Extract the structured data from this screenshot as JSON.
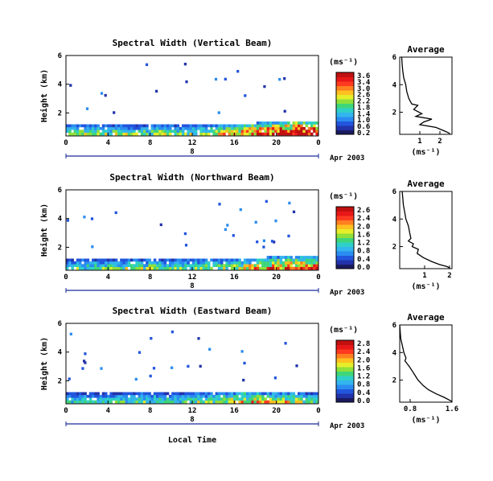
{
  "figure": {
    "xlabel": "Local Time",
    "date_label": "8",
    "date_suffix": "Apr 2003",
    "colorbar_unit": "(ms⁻¹)",
    "average_title": "Average",
    "average_xlabel": "(ms⁻¹)",
    "ylabel": "Height (km)"
  },
  "chart_data": [
    {
      "type": "heatmap",
      "title": "Spectral Width (Vertical Beam)",
      "xlabel": "",
      "ylabel": "Height (km)",
      "x_ticks": [
        "0",
        "4",
        "8",
        "12",
        "16",
        "20",
        "0"
      ],
      "xlim": [
        0,
        24
      ],
      "y_ticks": [
        "6",
        "4",
        "2"
      ],
      "ylim": [
        0.4,
        6
      ],
      "colorbar": {
        "ticks": [
          "3.6",
          "3.4",
          "3.0",
          "2.6",
          "2.2",
          "1.8",
          "1.4",
          "1.0",
          "0.6",
          "0.2"
        ],
        "range": [
          0,
          3.8
        ]
      },
      "boundary_layer": [
        [
          0,
          1.05,
          1.2
        ],
        [
          1,
          1.1,
          1.3
        ],
        [
          2,
          1.05,
          1.3
        ],
        [
          3,
          1.1,
          1.4
        ],
        [
          4,
          1.05,
          1.3
        ],
        [
          5,
          1.0,
          1.3
        ],
        [
          6,
          1.0,
          1.25
        ],
        [
          7,
          0.95,
          1.2
        ],
        [
          8,
          1.0,
          1.3
        ],
        [
          9,
          1.05,
          1.4
        ],
        [
          10,
          1.1,
          1.3
        ],
        [
          11,
          1.0,
          1.2
        ],
        [
          12,
          1.0,
          1.3
        ],
        [
          13,
          1.05,
          1.4
        ],
        [
          14,
          1.1,
          1.5
        ],
        [
          15,
          1.15,
          1.7
        ],
        [
          16,
          1.2,
          1.9
        ],
        [
          17,
          1.25,
          2.2
        ],
        [
          18,
          1.3,
          2.4
        ],
        [
          19,
          1.35,
          2.6
        ],
        [
          20,
          1.4,
          2.8
        ],
        [
          21,
          1.45,
          3.0
        ],
        [
          22,
          1.5,
          3.2
        ],
        [
          23,
          1.5,
          3.0
        ],
        [
          24,
          1.45,
          2.8
        ]
      ],
      "average": {
        "xlim": [
          0,
          2.6
        ],
        "x_ticks": [
          "1",
          "2"
        ],
        "y_ticks": [
          "6",
          "4",
          "2"
        ],
        "ylim": [
          0.4,
          6
        ],
        "profile": [
          [
            0.1,
            6.0
          ],
          [
            0.12,
            5.5
          ],
          [
            0.15,
            5.0
          ],
          [
            0.2,
            4.5
          ],
          [
            0.3,
            4.0
          ],
          [
            0.35,
            3.5
          ],
          [
            0.45,
            3.0
          ],
          [
            0.6,
            2.6
          ],
          [
            0.9,
            2.5
          ],
          [
            0.7,
            2.2
          ],
          [
            1.1,
            1.9
          ],
          [
            0.8,
            1.7
          ],
          [
            1.6,
            1.5
          ],
          [
            1.2,
            1.3
          ],
          [
            1.0,
            1.1
          ],
          [
            1.8,
            0.9
          ],
          [
            2.3,
            0.6
          ],
          [
            2.5,
            0.45
          ]
        ]
      }
    },
    {
      "type": "heatmap",
      "title": "Spectral Width (Northward Beam)",
      "xlabel": "",
      "ylabel": "Height (km)",
      "x_ticks": [
        "0",
        "4",
        "8",
        "12",
        "16",
        "20",
        "0"
      ],
      "xlim": [
        0,
        24
      ],
      "y_ticks": [
        "6",
        "4",
        "2"
      ],
      "ylim": [
        0.4,
        6
      ],
      "colorbar": {
        "ticks": [
          "2.6",
          "2.4",
          "2.0",
          "1.6",
          "1.2",
          "0.8",
          "0.4",
          "0.0"
        ],
        "range": [
          0,
          2.8
        ]
      },
      "boundary_layer": [
        [
          0,
          1.0,
          1.0
        ],
        [
          1,
          1.05,
          1.1
        ],
        [
          2,
          1.0,
          1.1
        ],
        [
          3,
          1.05,
          1.2
        ],
        [
          4,
          1.0,
          1.2
        ],
        [
          5,
          1.0,
          1.25
        ],
        [
          6,
          1.05,
          1.3
        ],
        [
          7,
          1.05,
          1.25
        ],
        [
          8,
          1.1,
          1.3
        ],
        [
          9,
          1.05,
          1.2
        ],
        [
          10,
          1.0,
          1.2
        ],
        [
          11,
          1.0,
          1.15
        ],
        [
          12,
          1.05,
          1.2
        ],
        [
          13,
          1.05,
          1.3
        ],
        [
          14,
          1.1,
          1.3
        ],
        [
          15,
          1.1,
          1.3
        ],
        [
          16,
          1.15,
          1.4
        ],
        [
          17,
          1.2,
          1.6
        ],
        [
          18,
          1.25,
          1.9
        ],
        [
          19,
          1.3,
          2.0
        ],
        [
          20,
          1.3,
          2.1
        ],
        [
          21,
          1.35,
          2.2
        ],
        [
          22,
          1.35,
          2.2
        ],
        [
          23,
          1.3,
          2.1
        ],
        [
          24,
          1.3,
          2.0
        ]
      ],
      "average": {
        "xlim": [
          0,
          2.1
        ],
        "x_ticks": [
          "1",
          "2"
        ],
        "y_ticks": [
          "6",
          "4",
          "2"
        ],
        "ylim": [
          0.4,
          6
        ],
        "profile": [
          [
            0.1,
            6.0
          ],
          [
            0.15,
            5.0
          ],
          [
            0.2,
            4.5
          ],
          [
            0.25,
            4.0
          ],
          [
            0.35,
            3.5
          ],
          [
            0.4,
            3.0
          ],
          [
            0.45,
            2.6
          ],
          [
            0.35,
            2.4
          ],
          [
            0.55,
            2.2
          ],
          [
            0.5,
            2.0
          ],
          [
            0.75,
            1.8
          ],
          [
            0.7,
            1.5
          ],
          [
            0.95,
            1.2
          ],
          [
            1.3,
            0.9
          ],
          [
            1.6,
            0.7
          ],
          [
            1.9,
            0.55
          ],
          [
            2.0,
            0.45
          ]
        ]
      }
    },
    {
      "type": "heatmap",
      "title": "Spectral Width (Eastward Beam)",
      "xlabel": "Local Time",
      "ylabel": "Height (km)",
      "x_ticks": [
        "0",
        "4",
        "8",
        "12",
        "16",
        "20",
        "0"
      ],
      "xlim": [
        0,
        24
      ],
      "y_ticks": [
        "6",
        "4",
        "2"
      ],
      "ylim": [
        0.4,
        6
      ],
      "colorbar": {
        "ticks": [
          "2.8",
          "2.4",
          "2.0",
          "1.6",
          "1.2",
          "0.8",
          "0.4",
          "0.0"
        ],
        "range": [
          0,
          3.0
        ]
      },
      "boundary_layer": [
        [
          0,
          0.95,
          0.9
        ],
        [
          1,
          1.0,
          1.0
        ],
        [
          2,
          1.0,
          1.1
        ],
        [
          3,
          0.95,
          1.0
        ],
        [
          4,
          1.0,
          1.05
        ],
        [
          5,
          0.95,
          1.0
        ],
        [
          6,
          1.0,
          1.1
        ],
        [
          7,
          1.0,
          1.15
        ],
        [
          8,
          1.05,
          1.2
        ],
        [
          9,
          1.0,
          1.1
        ],
        [
          10,
          1.0,
          1.05
        ],
        [
          11,
          1.0,
          1.05
        ],
        [
          12,
          1.05,
          1.15
        ],
        [
          13,
          1.1,
          1.3
        ],
        [
          14,
          1.1,
          1.35
        ],
        [
          15,
          1.15,
          1.5
        ],
        [
          16,
          1.2,
          1.7
        ],
        [
          17,
          1.25,
          1.8
        ],
        [
          18,
          1.2,
          1.7
        ],
        [
          19,
          1.15,
          1.6
        ],
        [
          20,
          1.1,
          1.5
        ],
        [
          21,
          1.1,
          1.5
        ],
        [
          22,
          1.1,
          1.4
        ],
        [
          23,
          1.05,
          1.3
        ],
        [
          24,
          1.0,
          1.2
        ]
      ],
      "average": {
        "xlim": [
          0.6,
          1.6
        ],
        "x_ticks": [
          "0.8",
          "1.6"
        ],
        "y_ticks": [
          "6",
          "4",
          "2"
        ],
        "ylim": [
          0.4,
          6
        ],
        "profile": [
          [
            0.6,
            6.0
          ],
          [
            0.62,
            5.0
          ],
          [
            0.65,
            4.5
          ],
          [
            0.68,
            4.0
          ],
          [
            0.72,
            3.6
          ],
          [
            0.7,
            3.4
          ],
          [
            0.78,
            3.0
          ],
          [
            0.85,
            2.6
          ],
          [
            0.9,
            2.3
          ],
          [
            0.95,
            2.0
          ],
          [
            1.05,
            1.6
          ],
          [
            1.15,
            1.3
          ],
          [
            1.3,
            1.0
          ],
          [
            1.45,
            0.75
          ],
          [
            1.55,
            0.55
          ],
          [
            1.6,
            0.45
          ]
        ]
      }
    }
  ],
  "colors": {
    "scale": [
      "#1a1a60",
      "#2233aa",
      "#2255dd",
      "#2a8cf0",
      "#33b5ee",
      "#2fd0c8",
      "#3fd67a",
      "#8fe03a",
      "#e6ee2a",
      "#ffc020",
      "#ff8020",
      "#ff3a20",
      "#e81818",
      "#c01010"
    ]
  }
}
